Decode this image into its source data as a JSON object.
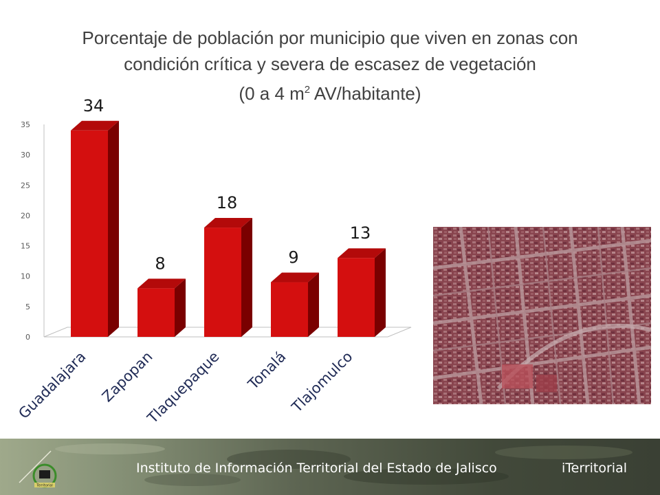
{
  "title": {
    "line1": "Porcentaje de población  por municipio que viven en zonas con",
    "line2": "condición crítica y severa de escasez de vegetación",
    "line3_prefix": "(0 a 4 m",
    "line3_sup": "2",
    "line3_suffix": " AV/habitante)"
  },
  "chart_data": {
    "type": "bar",
    "categories": [
      "Guadalajara",
      "Zapopan",
      "Tlaquepaque",
      "Tonalá",
      "Tlajomulco"
    ],
    "values": [
      34,
      8,
      18,
      9,
      13
    ],
    "data_labels": [
      "34",
      "8",
      "18",
      "9",
      "13"
    ],
    "y_ticks": [
      "0",
      "5",
      "10",
      "15",
      "20",
      "25",
      "30",
      "35"
    ],
    "ylim": [
      0,
      35
    ],
    "bar_color": "#d40f0f",
    "bar_side_color": "#7a0000",
    "bar_top_color": "#b30a0a",
    "grid": false,
    "legend": "none",
    "style": "3d-column"
  },
  "footer": {
    "institution": "Instituto de Información Territorial del Estado de Jalisco",
    "brand": "iTerritorial"
  },
  "logo": {
    "text": "Territorial"
  },
  "colors": {
    "title_text": "#404040",
    "footer_text": "#ffffff",
    "satellite_tint": "#8b3a42"
  }
}
